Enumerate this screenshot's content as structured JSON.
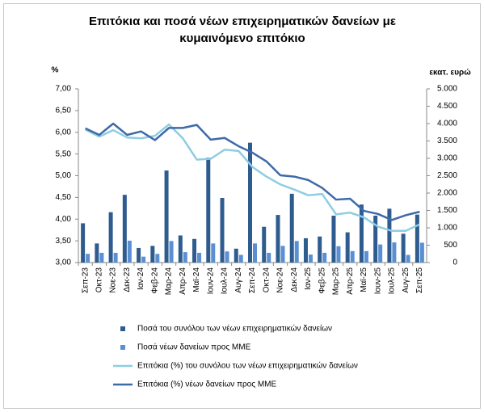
{
  "chart_data": {
    "type": "combo",
    "title": "Επιτόκια και ποσά νέων επιχειρηματικών δανείων με κυμαινόμενο επιτόκιο",
    "y_label": "%",
    "y2_label": "εκατ. ευρώ",
    "categories": [
      "Σεπ-23",
      "Οκτ-23",
      "Νοε-23",
      "Δεκ-23",
      "Ιαν-24",
      "Φεβ-24",
      "Μαρ-24",
      "Απρ-24",
      "Μαϊ-24",
      "Ιουν-24",
      "Ιουλ-24",
      "Αυγ-24",
      "Σεπ-24",
      "Οκτ-24",
      "Νοε-24",
      "Δεκ-24",
      "Ιαν-25",
      "Φεβ-25",
      "Μαρ-25",
      "Απρ-25",
      "Μαϊ-25",
      "Ιουν-25",
      "Ιουλ-25",
      "Αυγ-25",
      "Σεπ-25"
    ],
    "ylim": [
      3,
      7
    ],
    "yticks": [
      {
        "value": 3,
        "label": "3,00"
      },
      {
        "value": 3.5,
        "label": "3,50"
      },
      {
        "value": 4,
        "label": "4,00"
      },
      {
        "value": 4.5,
        "label": "4,50"
      },
      {
        "value": 5,
        "label": "5,00"
      },
      {
        "value": 5.5,
        "label": "5,50"
      },
      {
        "value": 6,
        "label": "6,00"
      },
      {
        "value": 6.5,
        "label": "6,50"
      },
      {
        "value": 7,
        "label": "7,00"
      }
    ],
    "y2lim": [
      0,
      5000
    ],
    "y2ticks": [
      0,
      500,
      {
        "value": 1000,
        "label": "1.000"
      },
      {
        "value": 1500,
        "label": "1.500"
      },
      {
        "value": 2000,
        "label": "2.000"
      },
      {
        "value": 2500,
        "label": "2.500"
      },
      {
        "value": 3000,
        "label": "3.000"
      },
      {
        "value": 3500,
        "label": "3.500"
      },
      {
        "value": 4000,
        "label": "4.000"
      },
      {
        "value": 4500,
        "label": "4.500"
      },
      {
        "value": 5000,
        "label": "5.000"
      }
    ],
    "series": [
      {
        "name": "Ποσά του συνόλου των νέων επιχειρηματικών δανείων",
        "type": "bar",
        "axis": "y2",
        "color": "#2f5c8f",
        "values": [
          1130,
          550,
          1450,
          1950,
          420,
          480,
          2650,
          780,
          680,
          3020,
          1860,
          400,
          3450,
          1030,
          1370,
          1980,
          700,
          750,
          1350,
          870,
          1670,
          1350,
          1550,
          830,
          1380
        ]
      },
      {
        "name": "Ποσά νέων δανείων προς ΜΜΕ",
        "type": "bar",
        "axis": "y2",
        "color": "#5b8fd4",
        "values": [
          250,
          280,
          280,
          630,
          170,
          250,
          620,
          300,
          280,
          550,
          320,
          220,
          550,
          280,
          480,
          620,
          230,
          280,
          470,
          330,
          330,
          520,
          580,
          220,
          570
        ]
      },
      {
        "name": "Επιτόκια (%) του συνόλου των νέων επιχειρηματικών δανείων",
        "type": "line",
        "axis": "y",
        "color": "#8ecde2",
        "values": [
          6.06,
          5.9,
          6.05,
          5.88,
          5.86,
          5.92,
          6.18,
          5.86,
          5.37,
          5.39,
          5.6,
          5.57,
          5.2,
          4.98,
          4.8,
          4.68,
          4.55,
          4.58,
          4.11,
          4.15,
          4.04,
          3.83,
          3.73,
          3.73,
          3.88
        ]
      },
      {
        "name": "Επιτόκια (%) νέων δανείων προς ΜΜΕ",
        "type": "line",
        "axis": "y",
        "color": "#3e6aa8",
        "values": [
          6.09,
          5.94,
          6.2,
          5.94,
          6.02,
          5.82,
          6.1,
          6.1,
          6.17,
          5.83,
          5.87,
          5.68,
          5.53,
          5.33,
          5.01,
          4.98,
          4.9,
          4.72,
          4.45,
          4.47,
          4.19,
          4.12,
          3.98,
          4.09,
          4.17
        ]
      }
    ]
  }
}
